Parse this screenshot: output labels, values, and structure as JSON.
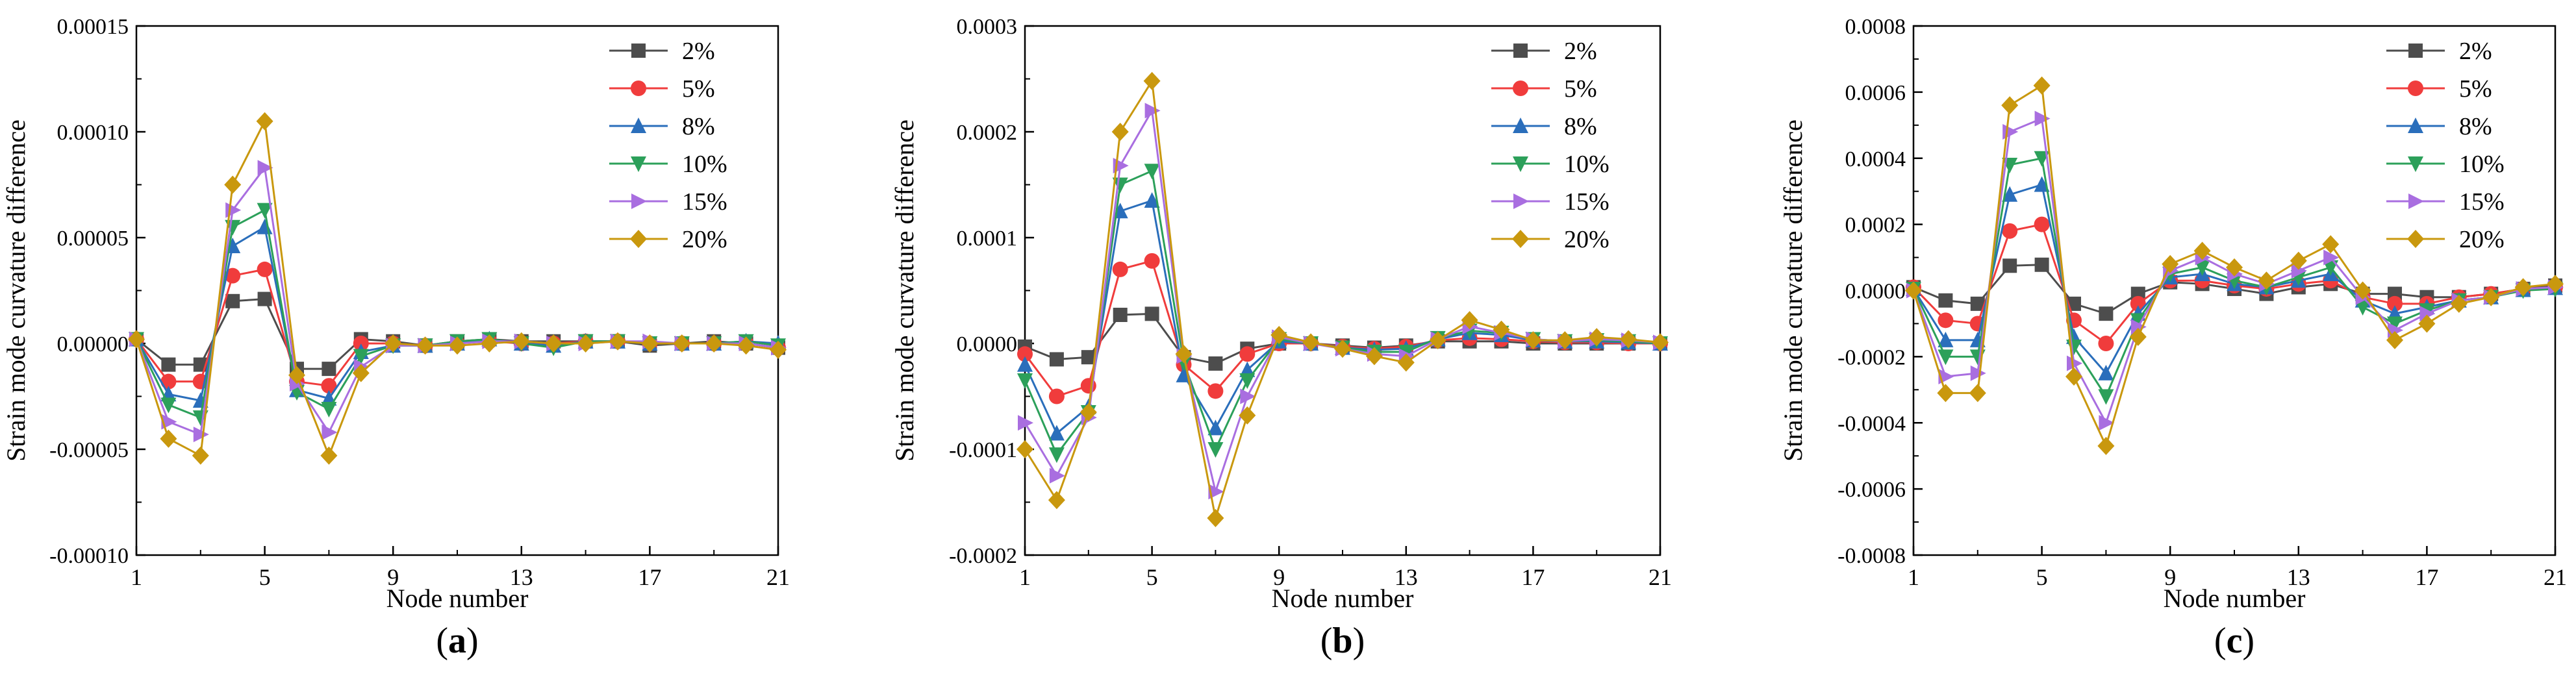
{
  "figure": {
    "markers": {
      "2%": "square",
      "5%": "circle",
      "8%": "triangle-up",
      "10%": "triangle-down",
      "15%": "triangle-right",
      "20%": "diamond"
    }
  },
  "chart_data": [
    {
      "type": "line",
      "panel_label": "(a)",
      "panel_letter": "a",
      "xlabel": "Node number",
      "ylabel": "Strain mode curvature difference",
      "xlim": [
        1,
        21
      ],
      "ylim": [
        -0.0001,
        0.00015
      ],
      "xticks": [
        1,
        5,
        9,
        13,
        17,
        21
      ],
      "xtick_labels": [
        "1",
        "5",
        "9",
        "13",
        "17",
        "21"
      ],
      "yticks": [
        -0.0001,
        -5e-05,
        0,
        5e-05,
        0.0001,
        0.00015
      ],
      "ytick_labels": [
        "-0.00010",
        "-0.00005",
        "0.00000",
        "0.00005",
        "0.00010",
        "0.00015"
      ],
      "legend_position": "top-right",
      "grid": false,
      "x": [
        1,
        2,
        3,
        4,
        5,
        6,
        7,
        8,
        9,
        10,
        11,
        12,
        13,
        14,
        15,
        16,
        17,
        18,
        19,
        20,
        21
      ],
      "series": [
        {
          "name": "2%",
          "color": "#4d4d4d",
          "marker": "square",
          "values": [
            2e-06,
            -1e-05,
            -1e-05,
            2e-05,
            2.1e-05,
            -1.2e-05,
            -1.2e-05,
            2e-06,
            1e-06,
            -1e-06,
            1e-06,
            2e-06,
            1e-06,
            1e-06,
            1e-06,
            1e-06,
            -1e-06,
            0,
            1e-06,
            0,
            -2e-06
          ]
        },
        {
          "name": "5%",
          "color": "#f03c3c",
          "marker": "circle",
          "values": [
            2e-06,
            -1.8e-05,
            -1.8e-05,
            3.2e-05,
            3.5e-05,
            -1.8e-05,
            -2e-05,
            0,
            0,
            -1e-06,
            0,
            1e-06,
            0,
            0,
            1e-06,
            1e-06,
            0,
            0,
            0,
            0,
            -2e-06
          ]
        },
        {
          "name": "8%",
          "color": "#2a6ebb",
          "marker": "triangle-up",
          "values": [
            2e-06,
            -2.4e-05,
            -2.7e-05,
            4.6e-05,
            5.5e-05,
            -2.2e-05,
            -2.6e-05,
            -4e-06,
            -1e-06,
            -1e-06,
            0,
            2e-06,
            0,
            -1e-06,
            1e-06,
            1e-06,
            0,
            0,
            0,
            1e-06,
            0
          ]
        },
        {
          "name": "10%",
          "color": "#2ca05a",
          "marker": "triangle-down",
          "values": [
            2e-06,
            -2.9e-05,
            -3.5e-05,
            5.5e-05,
            6.3e-05,
            -2.3e-05,
            -3.1e-05,
            -6e-06,
            -1e-06,
            -1e-06,
            1e-06,
            2e-06,
            0,
            -2e-06,
            1e-06,
            1e-06,
            0,
            0,
            0,
            1e-06,
            -1e-06
          ]
        },
        {
          "name": "15%",
          "color": "#a96ee0",
          "marker": "triangle-right",
          "values": [
            2e-06,
            -3.7e-05,
            -4.3e-05,
            6.3e-05,
            8.3e-05,
            -1.9e-05,
            -4.2e-05,
            -1.1e-05,
            -1e-06,
            -1e-06,
            0,
            1e-06,
            1e-06,
            0,
            0,
            1e-06,
            1e-06,
            0,
            0,
            0,
            -2e-06
          ]
        },
        {
          "name": "20%",
          "color": "#c9980e",
          "marker": "diamond",
          "values": [
            2e-06,
            -4.5e-05,
            -5.3e-05,
            7.5e-05,
            0.000105,
            -1.5e-05,
            -5.3e-05,
            -1.4e-05,
            0,
            -1e-06,
            -1e-06,
            0,
            1e-06,
            0,
            0,
            1e-06,
            0,
            0,
            0,
            -1e-06,
            -3e-06
          ]
        }
      ]
    },
    {
      "type": "line",
      "panel_label": "(b)",
      "panel_letter": "b",
      "xlabel": "Node number",
      "ylabel": "Strain mode curvature difference",
      "xlim": [
        1,
        21
      ],
      "ylim": [
        -0.0002,
        0.0003
      ],
      "xticks": [
        1,
        5,
        9,
        13,
        17,
        21
      ],
      "xtick_labels": [
        "1",
        "5",
        "9",
        "13",
        "17",
        "21"
      ],
      "yticks": [
        -0.0002,
        -0.0001,
        0,
        0.0001,
        0.0002,
        0.0003
      ],
      "ytick_labels": [
        "-0.0002",
        "-0.0001",
        "0.0000",
        "0.0001",
        "0.0002",
        "0.0003"
      ],
      "legend_position": "top-right",
      "grid": false,
      "x": [
        1,
        2,
        3,
        4,
        5,
        6,
        7,
        8,
        9,
        10,
        11,
        12,
        13,
        14,
        15,
        16,
        17,
        18,
        19,
        20,
        21
      ],
      "series": [
        {
          "name": "2%",
          "color": "#4d4d4d",
          "marker": "square",
          "values": [
            -3e-06,
            -1.5e-05,
            -1.3e-05,
            2.7e-05,
            2.8e-05,
            -1.3e-05,
            -1.9e-05,
            -5e-06,
            0,
            0,
            -2e-06,
            -4e-06,
            -2e-06,
            2e-06,
            2e-06,
            2e-06,
            0,
            0,
            0,
            0,
            0
          ]
        },
        {
          "name": "5%",
          "color": "#f03c3c",
          "marker": "circle",
          "values": [
            -1e-05,
            -5e-05,
            -4e-05,
            7e-05,
            7.8e-05,
            -2e-05,
            -4.5e-05,
            -1e-05,
            0,
            0,
            -3e-06,
            -5e-06,
            -3e-06,
            3e-06,
            5e-06,
            4e-06,
            2e-06,
            1e-06,
            1e-06,
            0,
            0
          ]
        },
        {
          "name": "8%",
          "color": "#2a6ebb",
          "marker": "triangle-up",
          "values": [
            -2e-05,
            -8.5e-05,
            -6e-05,
            0.000125,
            0.000135,
            -3e-05,
            -8e-05,
            -2.5e-05,
            2e-06,
            0,
            -4e-06,
            -6e-06,
            -5e-06,
            4e-06,
            1e-05,
            8e-06,
            3e-06,
            2e-06,
            2e-06,
            1e-06,
            0
          ]
        },
        {
          "name": "10%",
          "color": "#2ca05a",
          "marker": "triangle-down",
          "values": [
            -3.5e-05,
            -0.000105,
            -6.5e-05,
            0.00015,
            0.000163,
            -1.8e-05,
            -0.0001,
            -3.5e-05,
            4e-06,
            0,
            -4e-06,
            -8e-06,
            -8e-06,
            5e-06,
            1.2e-05,
            1e-05,
            4e-06,
            2e-06,
            3e-06,
            2e-06,
            0
          ]
        },
        {
          "name": "15%",
          "color": "#a96ee0",
          "marker": "triangle-right",
          "values": [
            -7.5e-05,
            -0.000125,
            -7e-05,
            0.000168,
            0.00022,
            -1.2e-05,
            -0.00014,
            -5e-05,
            6e-06,
            0,
            -5e-06,
            -1e-05,
            -1.2e-05,
            4e-06,
            1.6e-05,
            1e-05,
            4e-06,
            2e-06,
            4e-06,
            3e-06,
            1e-06
          ]
        },
        {
          "name": "20%",
          "color": "#c9980e",
          "marker": "diamond",
          "values": [
            -0.0001,
            -0.000148,
            -6.5e-05,
            0.0002,
            0.000248,
            -1e-05,
            -0.000165,
            -6.8e-05,
            8e-06,
            1e-06,
            -5e-06,
            -1.2e-05,
            -1.8e-05,
            3e-06,
            2.2e-05,
            1.3e-05,
            3e-06,
            3e-06,
            6e-06,
            4e-06,
            1e-06
          ]
        }
      ]
    },
    {
      "type": "line",
      "panel_label": "(c)",
      "panel_letter": "c",
      "xlabel": "Node number",
      "ylabel": "Strain mode curvature difference",
      "xlim": [
        1,
        21
      ],
      "ylim": [
        -0.0008,
        0.0008
      ],
      "xticks": [
        1,
        5,
        9,
        13,
        17,
        21
      ],
      "xtick_labels": [
        "1",
        "5",
        "9",
        "13",
        "17",
        "21"
      ],
      "yticks": [
        -0.0008,
        -0.0006,
        -0.0004,
        -0.0002,
        0,
        0.0002,
        0.0004,
        0.0006,
        0.0008
      ],
      "ytick_labels": [
        "-0.0008",
        "-0.0006",
        "-0.0004",
        "-0.0002",
        "0.0000",
        "0.0002",
        "0.0004",
        "0.0006",
        "0.0008"
      ],
      "legend_position": "top-right",
      "grid": false,
      "x": [
        1,
        2,
        3,
        4,
        5,
        6,
        7,
        8,
        9,
        10,
        11,
        12,
        13,
        14,
        15,
        16,
        17,
        18,
        19,
        20,
        21
      ],
      "series": [
        {
          "name": "2%",
          "color": "#4d4d4d",
          "marker": "square",
          "values": [
            1e-05,
            -3e-05,
            -4e-05,
            7.5e-05,
            7.8e-05,
            -4e-05,
            -7e-05,
            -1e-05,
            2.5e-05,
            2e-05,
            5e-06,
            -1e-05,
            1e-05,
            2e-05,
            -1e-05,
            -1e-05,
            -2e-05,
            -2e-05,
            -1e-05,
            5e-06,
            1.5e-05
          ]
        },
        {
          "name": "5%",
          "color": "#f03c3c",
          "marker": "circle",
          "values": [
            1e-05,
            -9e-05,
            -0.0001,
            0.00018,
            0.0002,
            -9e-05,
            -0.00016,
            -4e-05,
            3e-05,
            3e-05,
            1.5e-05,
            5e-06,
            2e-05,
            3e-05,
            -2e-05,
            -4e-05,
            -4e-05,
            -2e-05,
            -1e-05,
            5e-06,
            1e-05
          ]
        },
        {
          "name": "8%",
          "color": "#2a6ebb",
          "marker": "triangle-up",
          "values": [
            5e-06,
            -0.00015,
            -0.00015,
            0.00029,
            0.00032,
            -0.00014,
            -0.00025,
            -7e-05,
            4e-05,
            5e-05,
            2e-05,
            1e-05,
            3e-05,
            5e-05,
            -3e-05,
            -7e-05,
            -5e-05,
            -3e-05,
            -2e-05,
            2e-06,
            8e-06
          ]
        },
        {
          "name": "10%",
          "color": "#2ca05a",
          "marker": "triangle-down",
          "values": [
            5e-06,
            -0.0002,
            -0.0002,
            0.00038,
            0.0004,
            -0.00017,
            -0.00032,
            -9e-05,
            5e-05,
            7e-05,
            3e-05,
            1e-05,
            4e-05,
            7e-05,
            -5e-05,
            -0.0001,
            -6e-05,
            -3e-05,
            -2e-05,
            0,
            5e-06
          ]
        },
        {
          "name": "15%",
          "color": "#a96ee0",
          "marker": "triangle-right",
          "values": [
            0,
            -0.00026,
            -0.00025,
            0.00048,
            0.00052,
            -0.00022,
            -0.0004,
            -0.00011,
            6e-05,
            0.0001,
            5e-05,
            2e-05,
            6e-05,
            0.0001,
            -2e-05,
            -0.00012,
            -7e-05,
            -3e-05,
            -2e-05,
            5e-06,
            1e-05
          ]
        },
        {
          "name": "20%",
          "color": "#c9980e",
          "marker": "diamond",
          "values": [
            0,
            -0.00031,
            -0.00031,
            0.00056,
            0.00062,
            -0.00026,
            -0.00047,
            -0.00014,
            8e-05,
            0.00012,
            7e-05,
            3e-05,
            9e-05,
            0.00014,
            0,
            -0.00015,
            -0.0001,
            -4e-05,
            -2e-05,
            1e-05,
            2e-05
          ]
        }
      ]
    }
  ]
}
